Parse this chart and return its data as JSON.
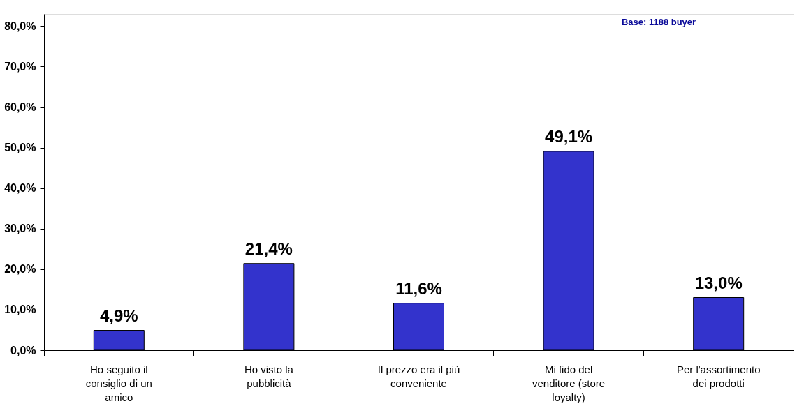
{
  "chart_data": {
    "type": "bar",
    "categories": [
      "Ho seguito il consiglio di un amico",
      "Ho visto la pubblicità",
      "Il prezzo era il più conveniente",
      "Mi fido del venditore (store loyalty)",
      "Per l'assortimento dei prodotti"
    ],
    "values": [
      4.9,
      21.4,
      11.6,
      49.1,
      13.0
    ],
    "value_labels": [
      "4,9%",
      "21,4%",
      "11,6%",
      "49,1%",
      "13,0%"
    ],
    "color": "#3333cc",
    "ylim": [
      0,
      83
    ],
    "yticks": [
      {
        "value": 0,
        "label": "0,0%"
      },
      {
        "value": 10,
        "label": "10,0%"
      },
      {
        "value": 20,
        "label": "20,0%"
      },
      {
        "value": 30,
        "label": "30,0%"
      },
      {
        "value": 40,
        "label": "40,0%"
      },
      {
        "value": 50,
        "label": "50,0%"
      },
      {
        "value": 60,
        "label": "60,0%"
      },
      {
        "value": 70,
        "label": "70,0%"
      },
      {
        "value": 80,
        "label": "80,0%"
      }
    ],
    "grid": "y",
    "annotations": [
      "Base: 1188 buyer"
    ]
  }
}
